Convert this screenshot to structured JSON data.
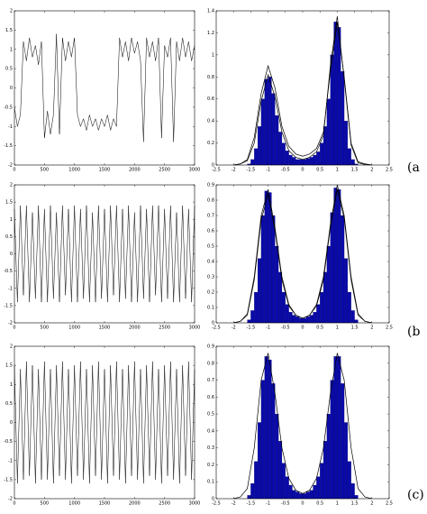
{
  "panel_labels": [
    "(a",
    "(b",
    "(c)"
  ],
  "chart_data": [
    {
      "type": "line",
      "color": "#000000",
      "xlim": [
        0,
        3000
      ],
      "xticks": [
        0,
        500,
        1000,
        1500,
        2000,
        2500,
        3000
      ],
      "ylim": [
        -2,
        2
      ],
      "yticks": [
        -2,
        -1.5,
        -1,
        -0.5,
        0,
        0.5,
        1,
        1.5,
        2
      ],
      "x": [
        0,
        50,
        100,
        150,
        200,
        250,
        300,
        350,
        400,
        450,
        500,
        550,
        600,
        650,
        700,
        750,
        800,
        850,
        900,
        950,
        1000,
        1050,
        1100,
        1150,
        1200,
        1250,
        1300,
        1350,
        1400,
        1450,
        1500,
        1550,
        1600,
        1650,
        1700,
        1750,
        1800,
        1850,
        1900,
        1950,
        2000,
        2050,
        2100,
        2150,
        2200,
        2250,
        2300,
        2350,
        2400,
        2450,
        2500,
        2550,
        2600,
        2650,
        2700,
        2750,
        2800,
        2850,
        2900,
        2950,
        3000
      ],
      "values": [
        -0.5,
        -1.0,
        -0.7,
        1.2,
        0.7,
        1.3,
        0.8,
        1.1,
        0.6,
        1.2,
        -1.3,
        -0.6,
        -1.2,
        -0.7,
        1.4,
        -1.2,
        1.3,
        0.7,
        1.2,
        0.8,
        1.3,
        -0.7,
        -1.0,
        -0.8,
        -1.1,
        -0.7,
        -1.0,
        -0.8,
        -1.1,
        -0.8,
        -1.0,
        -0.7,
        -1.1,
        -0.8,
        -1.0,
        1.3,
        0.8,
        1.2,
        0.7,
        1.3,
        0.9,
        1.2,
        0.7,
        -1.4,
        1.3,
        0.8,
        1.2,
        0.7,
        1.3,
        -1.3,
        1.1,
        0.8,
        1.3,
        -1.4,
        1.2,
        0.7,
        1.3,
        0.8,
        1.2,
        0.7,
        1.1
      ]
    },
    {
      "type": "histogram",
      "color": "#0a0aa8",
      "xlim": [
        -2.5,
        2.5
      ],
      "xticks": [
        -2.5,
        -2,
        -1.5,
        -1,
        -0.5,
        0,
        0.5,
        1,
        1.5,
        2,
        2.5
      ],
      "ylim": [
        0,
        1.4
      ],
      "yticks": [
        0,
        0.2,
        0.4,
        0.6,
        0.8,
        1,
        1.2,
        1.4
      ],
      "bins": [
        -1.6,
        -1.5,
        -1.4,
        -1.3,
        -1.2,
        -1.1,
        -1.0,
        -0.9,
        -0.8,
        -0.7,
        -0.6,
        -0.5,
        -0.4,
        -0.3,
        -0.2,
        -0.1,
        0,
        0.1,
        0.2,
        0.3,
        0.4,
        0.5,
        0.6,
        0.7,
        0.8,
        0.9,
        1.0,
        1.1,
        1.2,
        1.3,
        1.4,
        1.5,
        1.6
      ],
      "values": [
        0.01,
        0.05,
        0.15,
        0.35,
        0.6,
        0.78,
        0.8,
        0.65,
        0.45,
        0.3,
        0.2,
        0.13,
        0.09,
        0.07,
        0.05,
        0.05,
        0.05,
        0.06,
        0.07,
        0.09,
        0.12,
        0.2,
        0.35,
        0.6,
        1.0,
        1.3,
        1.25,
        0.85,
        0.4,
        0.15,
        0.05,
        0.01
      ],
      "series": [
        {
          "color": "#000000",
          "x": [
            -2,
            -1.8,
            -1.6,
            -1.4,
            -1.2,
            -1,
            -0.8,
            -0.6,
            -0.4,
            -0.2,
            0,
            0.2,
            0.4,
            0.6,
            0.8,
            1,
            1.2,
            1.4,
            1.6,
            1.8,
            2
          ],
          "values": [
            0,
            0.01,
            0.05,
            0.25,
            0.65,
            0.9,
            0.7,
            0.35,
            0.17,
            0.1,
            0.08,
            0.1,
            0.15,
            0.3,
            0.85,
            1.3,
            0.8,
            0.2,
            0.03,
            0.01,
            0
          ]
        },
        {
          "color": "#000000",
          "x": [
            -2,
            -1.8,
            -1.6,
            -1.4,
            -1.2,
            -1,
            -0.8,
            -0.6,
            -0.4,
            -0.2,
            0,
            0.2,
            0.4,
            0.6,
            0.8,
            1,
            1.2,
            1.4,
            1.6,
            1.8,
            2
          ],
          "values": [
            0,
            0.01,
            0.04,
            0.2,
            0.58,
            0.82,
            0.62,
            0.3,
            0.13,
            0.07,
            0.05,
            0.07,
            0.12,
            0.27,
            0.9,
            1.35,
            0.78,
            0.18,
            0.02,
            0.005,
            0
          ]
        }
      ]
    },
    {
      "type": "line",
      "color": "#000000",
      "xlim": [
        0,
        3000
      ],
      "xticks": [
        0,
        500,
        1000,
        1500,
        2000,
        2500,
        3000
      ],
      "ylim": [
        -2,
        2
      ],
      "yticks": [
        -2,
        -1.5,
        -1,
        -0.5,
        0,
        0.5,
        1,
        1.5,
        2
      ],
      "x": [
        0,
        50,
        100,
        150,
        200,
        250,
        300,
        350,
        400,
        450,
        500,
        550,
        600,
        650,
        700,
        750,
        800,
        850,
        900,
        950,
        1000,
        1050,
        1100,
        1150,
        1200,
        1250,
        1300,
        1350,
        1400,
        1450,
        1500,
        1550,
        1600,
        1650,
        1700,
        1750,
        1800,
        1850,
        1900,
        1950,
        2000,
        2050,
        2100,
        2150,
        2200,
        2250,
        2300,
        2350,
        2400,
        2450,
        2500,
        2550,
        2600,
        2650,
        2700,
        2750,
        2800,
        2850,
        2900,
        2950,
        3000
      ],
      "values": [
        1.3,
        -1.4,
        1.4,
        -1.2,
        1.4,
        -1.4,
        1.2,
        -1.3,
        1.4,
        -1.4,
        1.3,
        -1.4,
        1.4,
        -1.3,
        1.2,
        -1.4,
        1.4,
        -1.2,
        1.3,
        -1.4,
        1.4,
        -1.4,
        1.3,
        -1.3,
        1.4,
        -1.4,
        1.2,
        -1.4,
        1.4,
        -1.3,
        1.3,
        -1.4,
        1.4,
        -1.2,
        1.4,
        -1.4,
        1.3,
        -1.3,
        1.4,
        -1.4,
        1.2,
        -1.4,
        1.4,
        -1.3,
        1.3,
        -1.4,
        1.4,
        -1.2,
        1.4,
        -1.4,
        1.3,
        -1.3,
        1.4,
        -1.4,
        1.2,
        -1.4,
        1.4,
        -1.3,
        1.3,
        -1.4,
        1.4
      ]
    },
    {
      "type": "histogram",
      "color": "#0a0aa8",
      "xlim": [
        -2.5,
        2.5
      ],
      "xticks": [
        -2.5,
        -2,
        -1.5,
        -1,
        -0.5,
        0,
        0.5,
        1,
        1.5,
        2,
        2.5
      ],
      "ylim": [
        0,
        0.9
      ],
      "yticks": [
        0,
        0.1,
        0.2,
        0.3,
        0.4,
        0.5,
        0.6,
        0.7,
        0.8,
        0.9
      ],
      "bins": [
        -1.6,
        -1.5,
        -1.4,
        -1.3,
        -1.2,
        -1.1,
        -1.0,
        -0.9,
        -0.8,
        -0.7,
        -0.6,
        -0.5,
        -0.4,
        -0.3,
        -0.2,
        -0.1,
        0,
        0.1,
        0.2,
        0.3,
        0.4,
        0.5,
        0.6,
        0.7,
        0.8,
        0.9,
        1.0,
        1.1,
        1.2,
        1.3,
        1.4,
        1.5,
        1.6
      ],
      "values": [
        0.02,
        0.08,
        0.2,
        0.42,
        0.7,
        0.86,
        0.85,
        0.7,
        0.5,
        0.33,
        0.2,
        0.12,
        0.07,
        0.05,
        0.04,
        0.03,
        0.03,
        0.04,
        0.05,
        0.07,
        0.12,
        0.2,
        0.33,
        0.5,
        0.72,
        0.88,
        0.87,
        0.7,
        0.42,
        0.2,
        0.08,
        0.02
      ],
      "series": [
        {
          "color": "#000000",
          "x": [
            -2,
            -1.8,
            -1.6,
            -1.4,
            -1.2,
            -1,
            -0.8,
            -0.6,
            -0.4,
            -0.2,
            0,
            0.2,
            0.4,
            0.6,
            0.8,
            1,
            1.2,
            1.4,
            1.6,
            1.8,
            2
          ],
          "values": [
            0,
            0.01,
            0.06,
            0.3,
            0.7,
            0.87,
            0.62,
            0.3,
            0.12,
            0.05,
            0.03,
            0.05,
            0.12,
            0.3,
            0.64,
            0.9,
            0.7,
            0.3,
            0.06,
            0.01,
            0
          ]
        },
        {
          "color": "#000000",
          "x": [
            -2,
            -1.8,
            -1.6,
            -1.4,
            -1.2,
            -1,
            -0.8,
            -0.6,
            -0.4,
            -0.2,
            0,
            0.2,
            0.4,
            0.6,
            0.8,
            1,
            1.2,
            1.4,
            1.6,
            1.8,
            2
          ],
          "values": [
            0,
            0.01,
            0.05,
            0.28,
            0.67,
            0.84,
            0.6,
            0.28,
            0.11,
            0.05,
            0.03,
            0.05,
            0.11,
            0.28,
            0.62,
            0.87,
            0.68,
            0.28,
            0.05,
            0.01,
            0
          ]
        }
      ]
    },
    {
      "type": "line",
      "color": "#000000",
      "xlim": [
        0,
        3000
      ],
      "xticks": [
        0,
        500,
        1000,
        1500,
        2000,
        2500,
        3000
      ],
      "ylim": [
        -2,
        2
      ],
      "yticks": [
        -2,
        -1.5,
        -1,
        -0.5,
        0,
        0.5,
        1,
        1.5,
        2
      ],
      "x": [
        0,
        50,
        100,
        150,
        200,
        250,
        300,
        350,
        400,
        450,
        500,
        550,
        600,
        650,
        700,
        750,
        800,
        850,
        900,
        950,
        1000,
        1050,
        1100,
        1150,
        1200,
        1250,
        1300,
        1350,
        1400,
        1450,
        1500,
        1550,
        1600,
        1650,
        1700,
        1750,
        1800,
        1850,
        1900,
        1950,
        2000,
        2050,
        2100,
        2150,
        2200,
        2250,
        2300,
        2350,
        2400,
        2450,
        2500,
        2550,
        2600,
        2650,
        2700,
        2750,
        2800,
        2850,
        2900,
        2950,
        3000
      ],
      "values": [
        1.5,
        -1.6,
        1.4,
        -1.5,
        1.6,
        -1.4,
        1.5,
        -1.6,
        1.4,
        -1.5,
        1.6,
        -1.5,
        1.4,
        -1.6,
        1.5,
        -1.4,
        1.6,
        -1.5,
        1.4,
        -1.6,
        1.5,
        -1.4,
        1.6,
        -1.5,
        1.4,
        -1.6,
        1.5,
        -1.4,
        1.6,
        -1.5,
        1.4,
        -1.6,
        1.5,
        -1.4,
        1.6,
        -1.5,
        1.4,
        -1.6,
        1.5,
        -1.4,
        1.6,
        -1.5,
        1.4,
        -1.6,
        1.5,
        -1.4,
        1.6,
        -1.5,
        1.4,
        -1.6,
        1.5,
        -1.4,
        1.6,
        -1.5,
        1.4,
        -1.6,
        1.5,
        -1.4,
        1.6,
        -1.5,
        1.4
      ]
    },
    {
      "type": "histogram",
      "color": "#0a0aa8",
      "xlim": [
        -2.5,
        2.5
      ],
      "xticks": [
        -2.5,
        -2,
        -1.5,
        -1,
        -0.5,
        0,
        0.5,
        1,
        1.5,
        2,
        2.5
      ],
      "ylim": [
        0,
        0.9
      ],
      "yticks": [
        0,
        0.1,
        0.2,
        0.3,
        0.4,
        0.5,
        0.6,
        0.7,
        0.8,
        0.9
      ],
      "bins": [
        -1.6,
        -1.5,
        -1.4,
        -1.3,
        -1.2,
        -1.1,
        -1.0,
        -0.9,
        -0.8,
        -0.7,
        -0.6,
        -0.5,
        -0.4,
        -0.3,
        -0.2,
        -0.1,
        0,
        0.1,
        0.2,
        0.3,
        0.4,
        0.5,
        0.6,
        0.7,
        0.8,
        0.9,
        1.0,
        1.1,
        1.2,
        1.3,
        1.4,
        1.5,
        1.6
      ],
      "values": [
        0.02,
        0.09,
        0.22,
        0.45,
        0.7,
        0.84,
        0.82,
        0.68,
        0.5,
        0.34,
        0.21,
        0.13,
        0.08,
        0.05,
        0.04,
        0.03,
        0.03,
        0.04,
        0.05,
        0.08,
        0.13,
        0.21,
        0.34,
        0.5,
        0.7,
        0.84,
        0.84,
        0.68,
        0.45,
        0.22,
        0.09,
        0.02
      ],
      "series": [
        {
          "color": "#000000",
          "x": [
            -2,
            -1.8,
            -1.6,
            -1.4,
            -1.2,
            -1,
            -0.8,
            -0.6,
            -0.4,
            -0.2,
            0,
            0.2,
            0.4,
            0.6,
            0.8,
            1,
            1.2,
            1.4,
            1.6,
            1.8,
            2
          ],
          "values": [
            0,
            0.01,
            0.06,
            0.3,
            0.7,
            0.86,
            0.62,
            0.3,
            0.12,
            0.05,
            0.03,
            0.05,
            0.12,
            0.3,
            0.62,
            0.86,
            0.7,
            0.3,
            0.06,
            0.01,
            0
          ]
        }
      ]
    }
  ]
}
